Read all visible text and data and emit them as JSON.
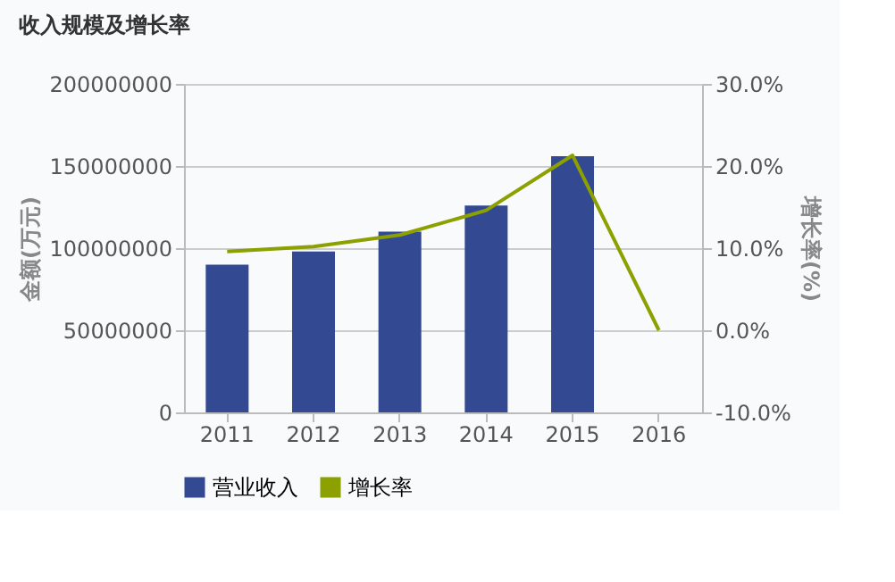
{
  "chart_data": {
    "type": "bar",
    "title": "收入规模及增长率",
    "ylabel": "金额(万元)",
    "y2label": "增长率(%)",
    "categories": [
      "2011",
      "2012",
      "2013",
      "2014",
      "2015",
      "2016"
    ],
    "series": [
      {
        "name": "营业收入",
        "color": "#334a93",
        "values": [
          90000000,
          98000000,
          110000000,
          126000000,
          156000000,
          null
        ]
      },
      {
        "name": "增长率",
        "type": "line",
        "axis": "y2",
        "color": "#8ca000",
        "values": [
          9.6,
          10.2,
          11.6,
          14.6,
          21.3,
          0
        ]
      }
    ],
    "ylim": [
      0,
      200000000
    ],
    "yticks": [
      0,
      50000000,
      100000000,
      150000000,
      200000000
    ],
    "y2lim": [
      -10,
      30
    ],
    "y2ticks": [
      {
        "value": -10,
        "label": "-10.0%"
      },
      {
        "value": 0,
        "label": "0.0%"
      },
      {
        "value": 10,
        "label": "10.0%"
      },
      {
        "value": 20,
        "label": "20.0%"
      },
      {
        "value": 30,
        "label": "30.0%"
      }
    ],
    "grid": "y",
    "legend": "bottom",
    "marker": "none",
    "line_style": "solid"
  }
}
